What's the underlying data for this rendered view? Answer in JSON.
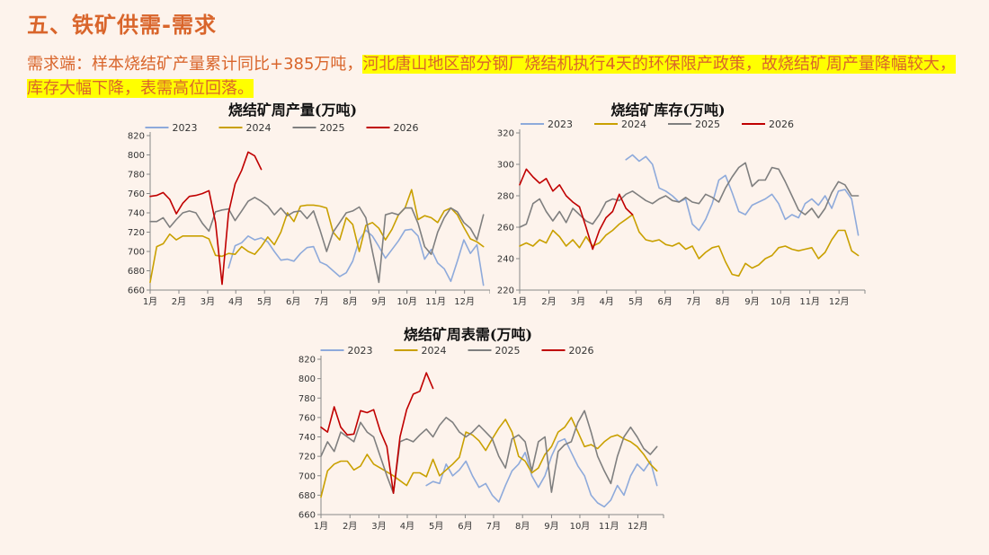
{
  "page": {
    "title": "五、铁矿供需-需求",
    "summary_plain": "需求端：样本烧结矿产量累计同比+385万吨，",
    "summary_highlight": "河北唐山地区部分钢厂烧结机执行4天的环保限产政策，故烧结矿周产量降幅较大，库存大幅下降，表需高位回落。"
  },
  "colors": {
    "2023": "#8eaadb",
    "2024": "#c9a000",
    "2025": "#7f7f7f",
    "2026": "#c00000"
  },
  "chart_data": [
    {
      "id": "production",
      "type": "line",
      "title": "烧结矿周产量(万吨)",
      "xlabel": "",
      "ylabel": "",
      "ylim": [
        660,
        820
      ],
      "yticks": [
        660,
        680,
        700,
        720,
        740,
        760,
        780,
        800,
        820
      ],
      "xticks": [
        "1月",
        "2月",
        "3月",
        "4月",
        "5月",
        "6月",
        "7月",
        "8月",
        "9月",
        "10月",
        "11月",
        "12月"
      ],
      "x_unit": "week",
      "legend": [
        "2023",
        "2024",
        "2025",
        "2026"
      ],
      "series": [
        {
          "name": "2023",
          "x": [
            13,
            14,
            15,
            16,
            17,
            18,
            19,
            20,
            21,
            22,
            23,
            24,
            25,
            26,
            27,
            28,
            29,
            30,
            31,
            32,
            33,
            34,
            35,
            36,
            37,
            38,
            39,
            40,
            41,
            42,
            43,
            44,
            45,
            46,
            47,
            48,
            49,
            50,
            51,
            52
          ],
          "values": [
            683,
            706,
            709,
            716,
            712,
            714,
            710,
            700,
            691,
            692,
            690,
            698,
            704,
            705,
            689,
            686,
            680,
            674,
            678,
            690,
            712,
            722,
            716,
            705,
            693,
            702,
            711,
            722,
            723,
            716,
            692,
            702,
            688,
            682,
            669,
            690,
            712,
            698,
            707,
            665
          ]
        },
        {
          "name": "2024",
          "x": [
            1,
            2,
            3,
            4,
            5,
            6,
            7,
            8,
            9,
            10,
            11,
            12,
            13,
            14,
            15,
            16,
            17,
            18,
            19,
            20,
            21,
            22,
            23,
            24,
            25,
            26,
            27,
            28,
            29,
            30,
            31,
            32,
            33,
            34,
            35,
            36,
            37,
            38,
            39,
            40,
            41,
            42,
            43,
            44,
            45,
            46,
            47,
            48,
            49,
            50,
            51,
            52
          ],
          "values": [
            668,
            705,
            708,
            718,
            712,
            716,
            716,
            716,
            716,
            713,
            696,
            695,
            698,
            697,
            705,
            700,
            697,
            705,
            715,
            707,
            720,
            740,
            731,
            747,
            748,
            748,
            747,
            745,
            720,
            712,
            735,
            728,
            700,
            727,
            730,
            724,
            712,
            723,
            738,
            745,
            764,
            733,
            737,
            735,
            730,
            742,
            745,
            738,
            725,
            713,
            710,
            705
          ]
        },
        {
          "name": "2025",
          "x": [
            1,
            2,
            3,
            4,
            5,
            6,
            7,
            8,
            9,
            10,
            11,
            12,
            13,
            14,
            15,
            16,
            17,
            18,
            19,
            20,
            21,
            22,
            23,
            24,
            25,
            26,
            27,
            28,
            29,
            30,
            31,
            32,
            33,
            34,
            35,
            36,
            37,
            38,
            39,
            40,
            41,
            42,
            43,
            44,
            45,
            46,
            47,
            48,
            49,
            50,
            51,
            52
          ],
          "values": [
            731,
            731,
            735,
            725,
            733,
            740,
            742,
            740,
            729,
            721,
            741,
            743,
            744,
            732,
            742,
            752,
            756,
            752,
            747,
            738,
            745,
            737,
            741,
            742,
            734,
            742,
            722,
            700,
            720,
            730,
            740,
            742,
            746,
            735,
            700,
            668,
            738,
            740,
            738,
            745,
            745,
            729,
            705,
            697,
            720,
            735,
            745,
            741,
            730,
            724,
            712,
            738
          ]
        },
        {
          "name": "2026",
          "x": [
            1,
            2,
            3,
            4,
            5,
            6,
            7,
            8,
            9,
            10,
            11,
            12,
            13,
            14,
            15,
            16,
            17,
            18
          ],
          "values": [
            757,
            758,
            761,
            754,
            739,
            750,
            757,
            758,
            760,
            763,
            730,
            666,
            740,
            770,
            784,
            803,
            799,
            785
          ]
        }
      ]
    },
    {
      "id": "inventory",
      "type": "line",
      "title": "烧结矿库存(万吨)",
      "xlabel": "",
      "ylabel": "",
      "ylim": [
        220,
        320
      ],
      "yticks": [
        220,
        240,
        260,
        280,
        300,
        320
      ],
      "xticks": [
        "1月",
        "2月",
        "3月",
        "4月",
        "5月",
        "6月",
        "7月",
        "8月",
        "9月",
        "10月",
        "11月",
        "12月"
      ],
      "x_unit": "week",
      "legend": [
        "2023",
        "2024",
        "2025",
        "2026"
      ],
      "series": [
        {
          "name": "2023",
          "x": [
            17,
            18,
            19,
            20,
            21,
            22,
            23,
            24,
            25,
            26,
            27,
            28,
            29,
            30,
            31,
            32,
            33,
            34,
            35,
            36,
            37,
            38,
            39,
            40,
            41,
            42,
            43,
            44,
            45,
            46,
            47,
            48,
            49,
            50,
            51,
            52
          ],
          "values": [
            303,
            306,
            302,
            305,
            300,
            285,
            283,
            280,
            276,
            278,
            262,
            258,
            265,
            275,
            290,
            293,
            282,
            270,
            268,
            274,
            276,
            278,
            281,
            275,
            265,
            268,
            266,
            275,
            278,
            274,
            280,
            272,
            283,
            284,
            278,
            255
          ]
        },
        {
          "name": "2024",
          "x": [
            1,
            2,
            3,
            4,
            5,
            6,
            7,
            8,
            9,
            10,
            11,
            12,
            13,
            14,
            15,
            16,
            17,
            18,
            19,
            20,
            21,
            22,
            23,
            24,
            25,
            26,
            27,
            28,
            29,
            30,
            31,
            32,
            33,
            34,
            35,
            36,
            37,
            38,
            39,
            40,
            41,
            42,
            43,
            44,
            45,
            46,
            47,
            48,
            49,
            50,
            51,
            52
          ],
          "values": [
            248,
            250,
            248,
            252,
            250,
            258,
            254,
            248,
            252,
            247,
            254,
            248,
            250,
            255,
            258,
            262,
            265,
            268,
            257,
            252,
            251,
            252,
            249,
            248,
            250,
            246,
            248,
            240,
            244,
            247,
            248,
            238,
            230,
            229,
            237,
            234,
            236,
            240,
            242,
            247,
            248,
            246,
            245,
            246,
            247,
            240,
            244,
            252,
            258,
            258,
            245,
            242
          ]
        },
        {
          "name": "2025",
          "x": [
            1,
            2,
            3,
            4,
            5,
            6,
            7,
            8,
            9,
            10,
            11,
            12,
            13,
            14,
            15,
            16,
            17,
            18,
            19,
            20,
            21,
            22,
            23,
            24,
            25,
            26,
            27,
            28,
            29,
            30,
            31,
            32,
            33,
            34,
            35,
            36,
            37,
            38,
            39,
            40,
            41,
            42,
            43,
            44,
            45,
            46,
            47,
            48,
            49,
            50,
            51,
            52
          ],
          "values": [
            260,
            262,
            275,
            278,
            270,
            264,
            270,
            263,
            272,
            268,
            264,
            262,
            268,
            276,
            278,
            277,
            281,
            283,
            280,
            277,
            275,
            278,
            280,
            277,
            276,
            279,
            276,
            275,
            281,
            279,
            276,
            285,
            292,
            298,
            301,
            286,
            290,
            290,
            298,
            297,
            289,
            280,
            271,
            268,
            272,
            266,
            272,
            282,
            289,
            287,
            280,
            280
          ]
        },
        {
          "name": "2026",
          "x": [
            1,
            2,
            3,
            4,
            5,
            6,
            7,
            8,
            9,
            10,
            11,
            12,
            13,
            14,
            15,
            16,
            17,
            18
          ],
          "values": [
            287,
            297,
            292,
            288,
            291,
            283,
            287,
            280,
            276,
            273,
            260,
            246,
            258,
            266,
            270,
            281,
            272,
            268
          ]
        }
      ]
    },
    {
      "id": "apparent_demand",
      "type": "line",
      "title": "烧结矿周表需(万吨)",
      "xlabel": "",
      "ylabel": "",
      "ylim": [
        660,
        820
      ],
      "yticks": [
        660,
        680,
        700,
        720,
        740,
        760,
        780,
        800,
        820
      ],
      "xticks": [
        "1月",
        "2月",
        "3月",
        "4月",
        "5月",
        "6月",
        "7月",
        "8月",
        "9月",
        "10月",
        "11月",
        "12月"
      ],
      "x_unit": "week",
      "legend": [
        "2023",
        "2024",
        "2025",
        "2026"
      ],
      "series": [
        {
          "name": "2023",
          "x": [
            17,
            18,
            19,
            20,
            21,
            22,
            23,
            24,
            25,
            26,
            27,
            28,
            29,
            30,
            31,
            32,
            33,
            34,
            35,
            36,
            37,
            38,
            39,
            40,
            41,
            42,
            43,
            44,
            45,
            46,
            47,
            48,
            49,
            50,
            51,
            52
          ],
          "values": [
            690,
            694,
            692,
            712,
            700,
            706,
            715,
            700,
            688,
            692,
            680,
            673,
            690,
            705,
            712,
            724,
            700,
            688,
            700,
            720,
            735,
            738,
            724,
            710,
            700,
            680,
            672,
            668,
            675,
            690,
            680,
            700,
            712,
            705,
            715,
            690
          ]
        },
        {
          "name": "2024",
          "x": [
            1,
            2,
            3,
            4,
            5,
            6,
            7,
            8,
            9,
            10,
            11,
            12,
            13,
            14,
            15,
            16,
            17,
            18,
            19,
            20,
            21,
            22,
            23,
            24,
            25,
            26,
            27,
            28,
            29,
            30,
            31,
            32,
            33,
            34,
            35,
            36,
            37,
            38,
            39,
            40,
            41,
            42,
            43,
            44,
            45,
            46,
            47,
            48,
            49,
            50,
            51,
            52
          ],
          "values": [
            678,
            705,
            712,
            715,
            715,
            706,
            710,
            722,
            712,
            708,
            704,
            700,
            695,
            690,
            703,
            703,
            699,
            717,
            700,
            706,
            712,
            719,
            745,
            742,
            736,
            726,
            738,
            749,
            758,
            745,
            720,
            715,
            703,
            708,
            722,
            730,
            745,
            750,
            760,
            745,
            730,
            732,
            728,
            735,
            740,
            742,
            738,
            735,
            730,
            722,
            712,
            705
          ]
        },
        {
          "name": "2025",
          "x": [
            1,
            2,
            3,
            4,
            5,
            6,
            7,
            8,
            9,
            10,
            11,
            12,
            13,
            14,
            15,
            16,
            17,
            18,
            19,
            20,
            21,
            22,
            23,
            24,
            25,
            26,
            27,
            28,
            29,
            30,
            31,
            32,
            33,
            34,
            35,
            36,
            37,
            38,
            39,
            40,
            41,
            42,
            43,
            44,
            45,
            46,
            47,
            48,
            49,
            50,
            51,
            52
          ],
          "values": [
            720,
            735,
            725,
            745,
            740,
            735,
            755,
            745,
            740,
            720,
            700,
            682,
            735,
            738,
            735,
            742,
            748,
            740,
            752,
            760,
            755,
            745,
            740,
            745,
            752,
            745,
            738,
            720,
            708,
            738,
            742,
            735,
            705,
            735,
            740,
            683,
            725,
            732,
            735,
            755,
            767,
            745,
            720,
            705,
            692,
            720,
            740,
            750,
            740,
            728,
            722,
            730
          ]
        },
        {
          "name": "2026",
          "x": [
            1,
            2,
            3,
            4,
            5,
            6,
            7,
            8,
            9,
            10,
            11,
            12,
            13,
            14,
            15,
            16,
            17,
            18
          ],
          "values": [
            750,
            745,
            771,
            750,
            742,
            743,
            767,
            765,
            768,
            746,
            730,
            682,
            740,
            768,
            784,
            787,
            806,
            790
          ]
        }
      ]
    }
  ]
}
